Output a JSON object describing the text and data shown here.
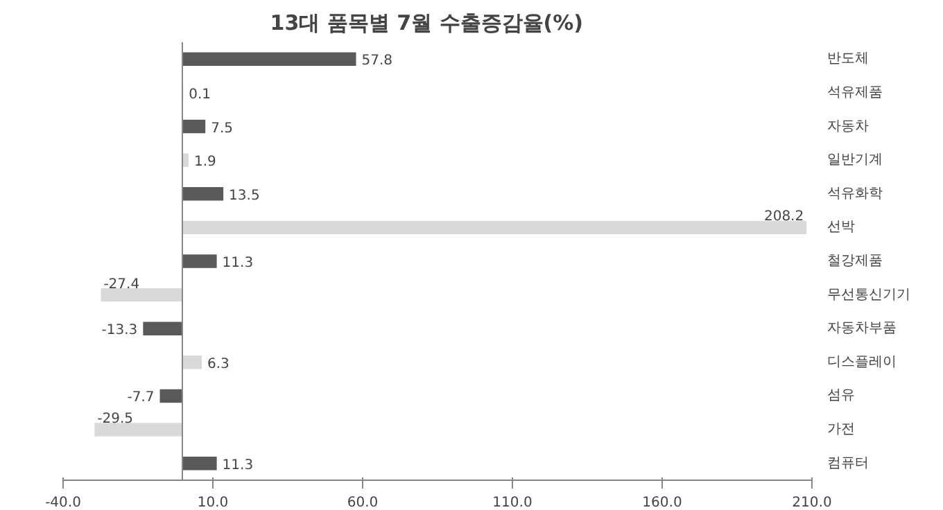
{
  "chart_data": {
    "type": "bar",
    "orientation": "horizontal",
    "title": "13대  품목별  7월  수출증감율(%)",
    "categories": [
      "반도체",
      "석유제품",
      "자동차",
      "일반기계",
      "석유화학",
      "선박",
      "철강제품",
      "무선통신기기",
      "자동차부품",
      "디스플레이",
      "섬유",
      "가전",
      "컴퓨터"
    ],
    "values": [
      57.8,
      0.1,
      7.5,
      1.9,
      13.5,
      208.2,
      11.3,
      -27.4,
      -13.3,
      6.3,
      -7.7,
      -29.5,
      11.3
    ],
    "colors": [
      "#595959",
      "#d9d9d9",
      "#595959",
      "#d9d9d9",
      "#595959",
      "#d9d9d9",
      "#595959",
      "#d9d9d9",
      "#595959",
      "#d9d9d9",
      "#595959",
      "#d9d9d9",
      "#595959"
    ],
    "xlim": [
      -40,
      210
    ],
    "xticks": [
      {
        "value": -40,
        "label": "-40.0"
      },
      {
        "value": 10,
        "label": "10.0"
      },
      {
        "value": 60,
        "label": "60.0"
      },
      {
        "value": 110,
        "label": "110.0"
      },
      {
        "value": 160,
        "label": "160.0"
      },
      {
        "value": 210,
        "label": "210.0"
      }
    ],
    "data_labels": true,
    "grid": false
  }
}
